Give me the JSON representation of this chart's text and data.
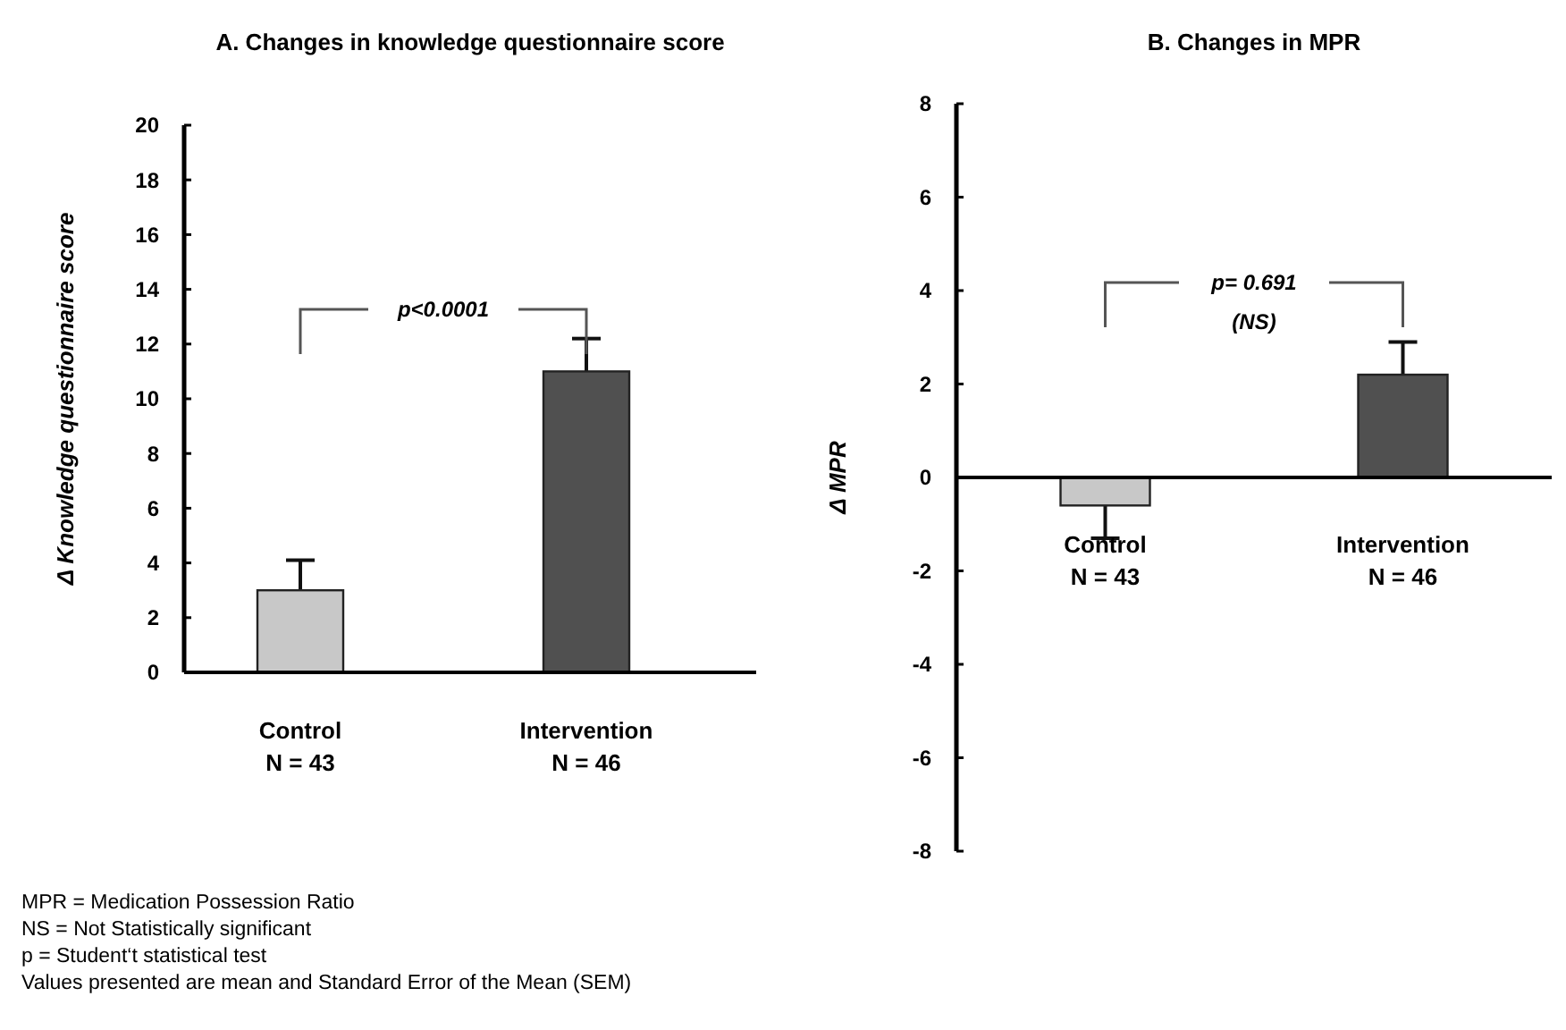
{
  "chart_data": [
    {
      "type": "bar",
      "title": "A. Changes in knowledge questionnaire score",
      "ylabel": "Δ Knowledge questionnaire score",
      "categories": [
        "Control\nN = 43",
        "Intervention\nN = 46"
      ],
      "colors": [
        "#c8c8c8",
        "#505050"
      ],
      "values": [
        3,
        11
      ],
      "errors": [
        [
          3,
          4.1
        ],
        [
          11,
          12.2
        ]
      ],
      "ylim": [
        0,
        20
      ],
      "yticks": [
        0,
        2,
        4,
        6,
        8,
        10,
        12,
        14,
        16,
        18,
        20
      ],
      "grid": false,
      "annotations": [
        "p<0.0001",
        "MPR = Medication Possession Ratio",
        "NS = Not Statistically significant",
        "p =  Student‘t statistical test",
        "Values presented are mean and Standard Error of the Mean (SEM)"
      ]
    },
    {
      "type": "bar",
      "title": "B. Changes in MPR",
      "ylabel": "Δ MPR",
      "categories": [
        "Control\nN = 43",
        "Intervention\nN = 46"
      ],
      "colors": [
        "#c8c8c8",
        "#505050"
      ],
      "values": [
        -0.6,
        2.2
      ],
      "errors": [
        [
          -1.3,
          -0.6
        ],
        [
          2.2,
          2.9
        ]
      ],
      "ylim": [
        -8,
        8
      ],
      "yticks": [
        -8,
        -6,
        -4,
        -2,
        0,
        2,
        4,
        6,
        8
      ],
      "grid": false,
      "annotations": [
        "p= 0.691\n(NS)"
      ]
    }
  ]
}
